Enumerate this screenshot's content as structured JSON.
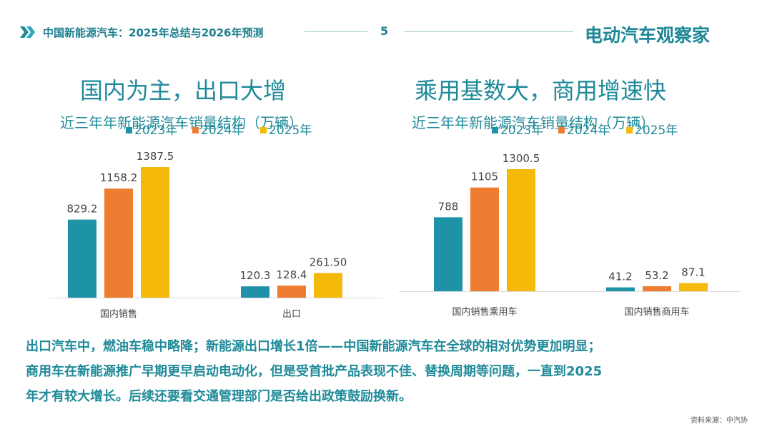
{
  "header": {
    "title": "中国新能源汽车：2025年总结与2026年预测",
    "page_number": "5",
    "brand": "电动汽车观察家"
  },
  "colors": {
    "accent": "#1f8a99",
    "c2023": "#1e93a7",
    "c2024": "#ee7d31",
    "c2025": "#f5b90a"
  },
  "left_panel": {
    "heading": "国内为主，出口大增"
  },
  "right_panel": {
    "heading": "乘用基数大，商用增速快"
  },
  "chart_data": [
    {
      "type": "bar",
      "title": "近三年年新能源汽车销量结构（万辆）",
      "categories": [
        "国内销售",
        "出口"
      ],
      "series": [
        {
          "name": "2023年",
          "values": [
            829.2,
            120.3
          ],
          "labels": [
            "829.2",
            "120.3"
          ]
        },
        {
          "name": "2024年",
          "values": [
            1158.2,
            128.4
          ],
          "labels": [
            "1158.2",
            "128.4"
          ]
        },
        {
          "name": "2025年",
          "values": [
            1387.5,
            261.5
          ],
          "labels": [
            "1387.5",
            "261.50"
          ]
        }
      ],
      "legend": "top",
      "grid": false,
      "ylim": [
        0,
        1500
      ]
    },
    {
      "type": "bar",
      "title": "近三年年新能源汽车销量结构（万辆）",
      "categories": [
        "国内销售乘用车",
        "国内销售商用车"
      ],
      "series": [
        {
          "name": "2023年",
          "values": [
            788,
            41.2
          ],
          "labels": [
            "788",
            "41.2"
          ]
        },
        {
          "name": "2024年",
          "values": [
            1105,
            53.2
          ],
          "labels": [
            "1105",
            "53.2"
          ]
        },
        {
          "name": "2025年",
          "values": [
            1300.5,
            87.1
          ],
          "labels": [
            "1300.5",
            "87.1"
          ]
        }
      ],
      "legend": "top",
      "grid": false,
      "ylim": [
        0,
        1400
      ]
    }
  ],
  "body_text": [
    "出口汽车中，燃油车稳中略降；新能源出口增长1倍——中国新能源汽车在全球的相对优势更加明显；",
    "商用车在新能源推广早期更早启动电动化，但是受首批产品表现不佳、替换周期等问题，一直到2025",
    "年才有较大增长。后续还要看交通管理部门是否给出政策鼓励换新。"
  ],
  "source": "资料来源：中汽协"
}
